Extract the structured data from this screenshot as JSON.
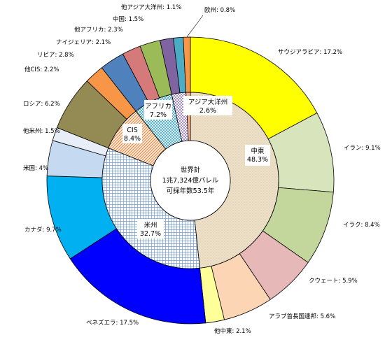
{
  "chart_data": {
    "type": "pie",
    "center_text": [
      "世界計",
      "1兆7,324億バレル",
      "可採年数53.5年"
    ],
    "inner": [
      {
        "label": "中東",
        "value": 48.3,
        "color": "#ede0c8",
        "pattern": "dots"
      },
      {
        "label": "米州",
        "value": 32.7,
        "color": "#dfe8f7",
        "pattern": "grid"
      },
      {
        "label": "CIS",
        "value": 8.4,
        "color": "#fbe6d2",
        "pattern": "hatch"
      },
      {
        "label": "アフリカ",
        "value": 7.2,
        "color": "#bfe3ef",
        "pattern": "cross"
      },
      {
        "label": "アジア大洋州",
        "value": 2.6,
        "color": "#ece4f4",
        "pattern": "check"
      },
      {
        "label": "欧州",
        "value": 0.8,
        "color": "#f7b08a",
        "pattern": "none"
      }
    ],
    "outer": [
      {
        "label": "サウジアラビア",
        "value": 17.2,
        "color": "#ffff00"
      },
      {
        "label": "イラン",
        "value": 9.1,
        "color": "#d8e4bc"
      },
      {
        "label": "イラク",
        "value": 8.4,
        "color": "#c3d69b"
      },
      {
        "label": "クウェート",
        "value": 5.9,
        "color": "#e6b9b8"
      },
      {
        "label": "アラブ首長国連邦",
        "value": 5.6,
        "color": "#fcd5b4"
      },
      {
        "label": "他中東",
        "value": 2.1,
        "color": "#ffff99"
      },
      {
        "label": "ベネズエラ",
        "value": 17.5,
        "color": "#0000ff"
      },
      {
        "label": "カナダ",
        "value": 9.7,
        "color": "#00b0f0"
      },
      {
        "label": "米国",
        "value": 4.0,
        "color": "#c5d9f1"
      },
      {
        "label": "他米州",
        "value": 1.5,
        "color": "#e8eef8"
      },
      {
        "label": "ロシア",
        "value": 6.2,
        "color": "#948a54"
      },
      {
        "label": "他CIS",
        "value": 2.2,
        "color": "#f79646"
      },
      {
        "label": "リビア",
        "value": 2.8,
        "color": "#4f81bd"
      },
      {
        "label": "ナイジェリア",
        "value": 2.1,
        "color": "#d47a7a"
      },
      {
        "label": "他アフリカ",
        "value": 2.3,
        "color": "#9bbb59"
      },
      {
        "label": "中国",
        "value": 1.5,
        "color": "#8064a2"
      },
      {
        "label": "他アジア大洋州",
        "value": 1.1,
        "color": "#4bacc6"
      },
      {
        "label": "欧州",
        "value": 0.8,
        "color": "#f79646"
      }
    ]
  }
}
